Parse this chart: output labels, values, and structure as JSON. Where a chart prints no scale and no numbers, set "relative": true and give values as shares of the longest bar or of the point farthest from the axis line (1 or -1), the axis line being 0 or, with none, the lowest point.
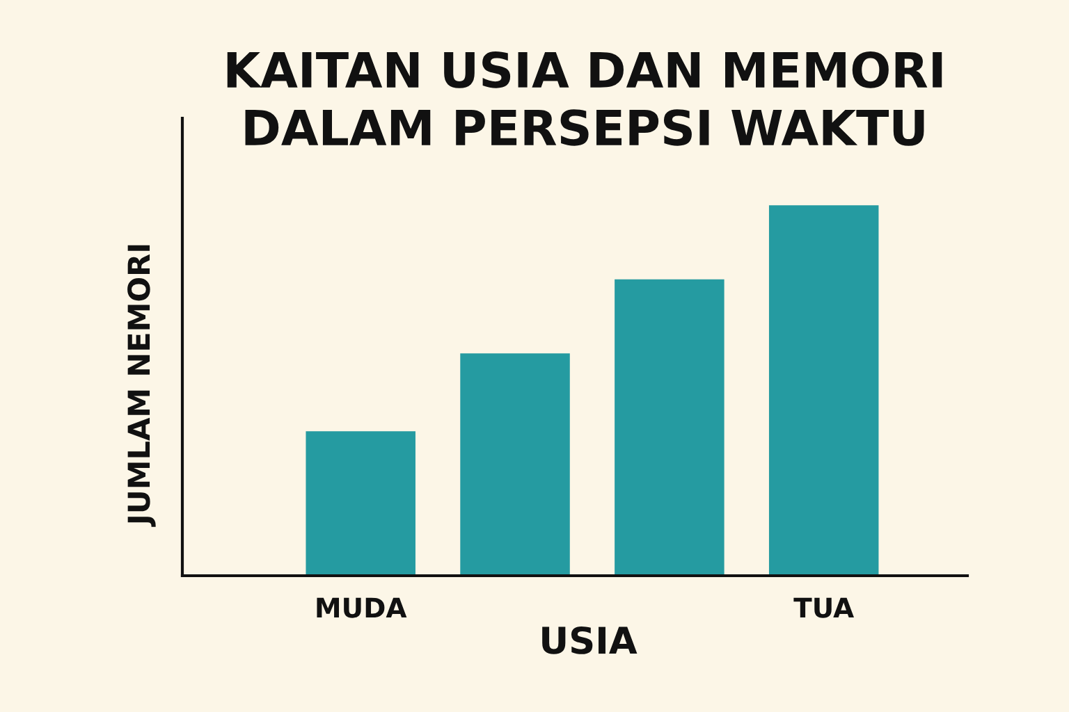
{
  "chart_data": {
    "type": "bar",
    "title": "KAITAN USIA DAN MEMORI\nDALAM PERSEPSI WAKTU",
    "xlabel": "USIA",
    "ylabel": "JUMLAM NEMORI",
    "categories": [
      "MUDA",
      null,
      null,
      "TUA"
    ],
    "values": [
      0.39,
      0.6,
      0.8,
      1
    ],
    "color": "#259ba1",
    "relative": true
  }
}
